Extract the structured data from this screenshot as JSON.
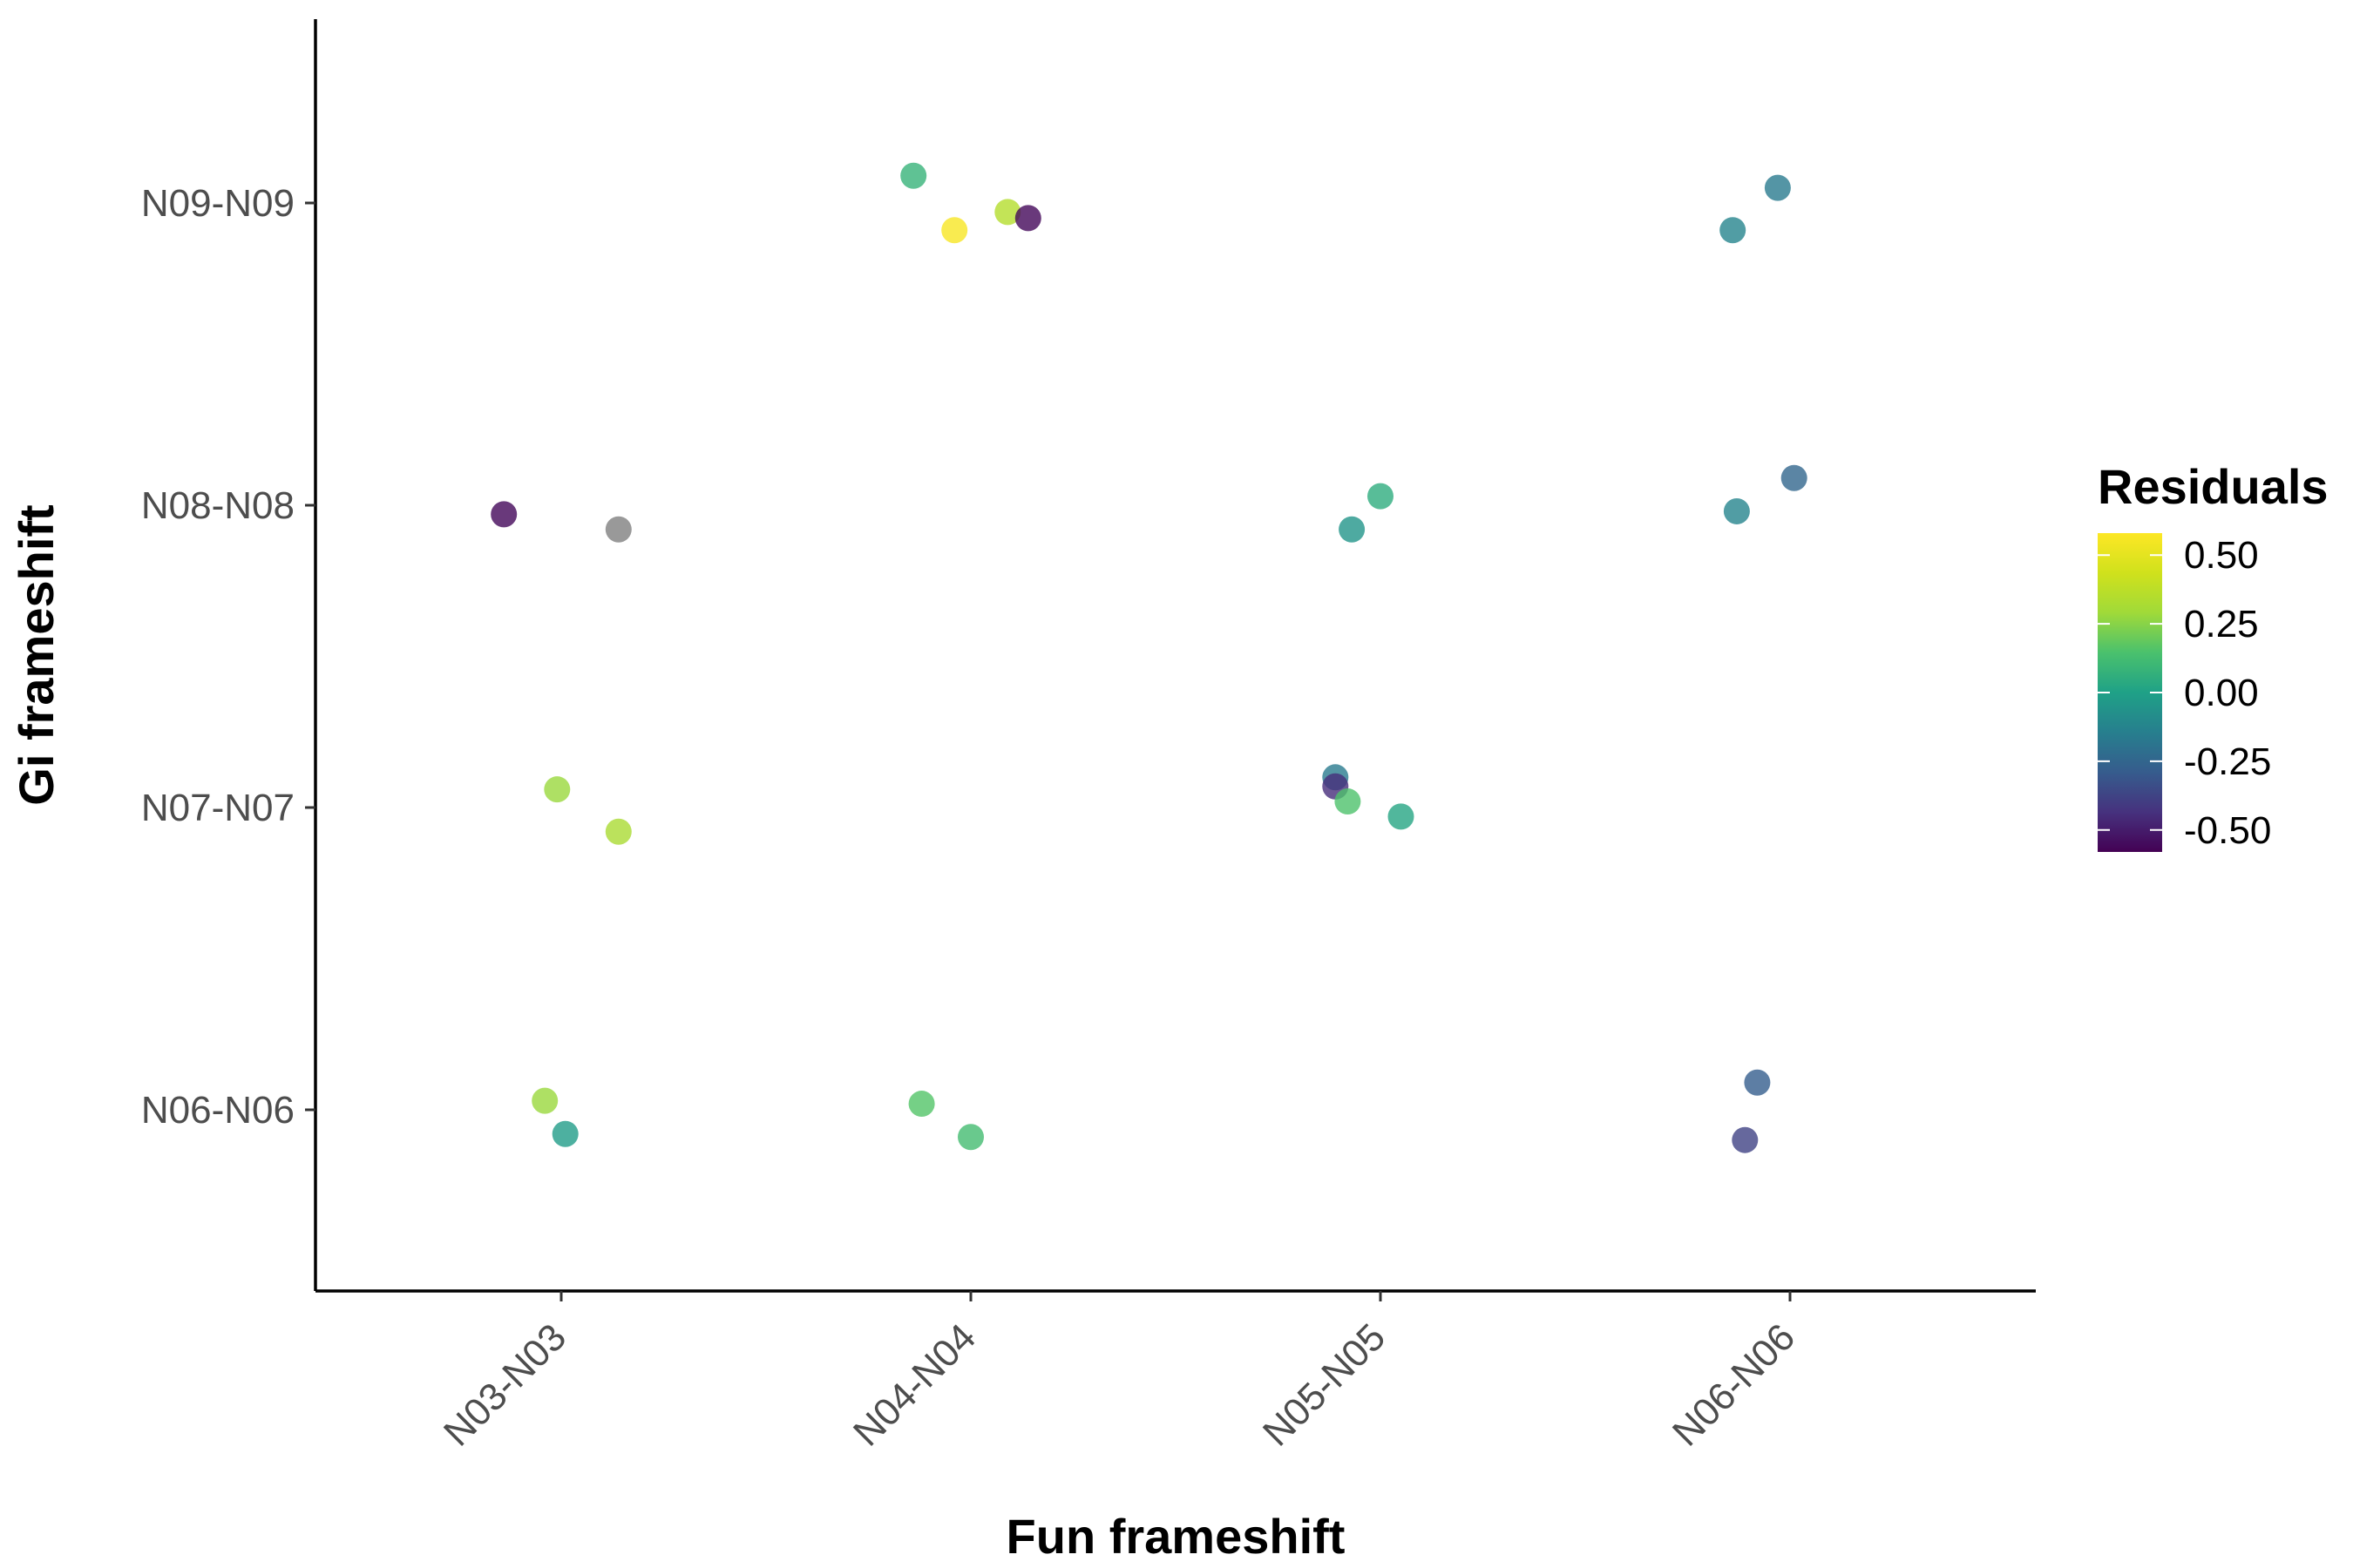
{
  "chart_data": {
    "type": "scatter",
    "xlabel": "Fun frameshift",
    "ylabel": "Gi frameshift",
    "x_categories": [
      "N03-N03",
      "N04-N04",
      "N05-N05",
      "N06-N06"
    ],
    "y_categories": [
      "N06-N06",
      "N07-N07",
      "N08-N08",
      "N09-N09"
    ],
    "color_scale": {
      "name": "Residuals",
      "palette": "viridis",
      "domain": [
        -0.58,
        0.58
      ],
      "ticks": [
        "0.50",
        "0.25",
        "0.00",
        "-0.25",
        "-0.50"
      ],
      "tick_values": [
        0.5,
        0.25,
        0.0,
        -0.25,
        -0.5
      ],
      "na_color": "#808080"
    },
    "points": [
      {
        "x": "N04-N04",
        "y": "N09-N09",
        "jx": -0.14,
        "jy": 0.09,
        "residual": 0.08
      },
      {
        "x": "N04-N04",
        "y": "N09-N09",
        "jx": -0.04,
        "jy": -0.09,
        "residual": 0.56
      },
      {
        "x": "N04-N04",
        "y": "N09-N09",
        "jx": 0.09,
        "jy": -0.03,
        "residual": 0.35
      },
      {
        "x": "N04-N04",
        "y": "N09-N09",
        "jx": 0.14,
        "jy": -0.05,
        "residual": -0.56
      },
      {
        "x": "N06-N06",
        "y": "N09-N09",
        "jx": -0.14,
        "jy": -0.09,
        "residual": -0.12
      },
      {
        "x": "N06-N06",
        "y": "N09-N09",
        "jx": -0.03,
        "jy": 0.05,
        "residual": -0.16
      },
      {
        "x": "N03-N03",
        "y": "N08-N08",
        "jx": -0.14,
        "jy": -0.03,
        "residual": -0.56
      },
      {
        "x": "N03-N03",
        "y": "N08-N08",
        "jx": 0.14,
        "jy": -0.08,
        "residual": null
      },
      {
        "x": "N05-N05",
        "y": "N08-N08",
        "jx": -0.07,
        "jy": -0.08,
        "residual": -0.05
      },
      {
        "x": "N05-N05",
        "y": "N08-N08",
        "jx": 0.0,
        "jy": 0.03,
        "residual": 0.05
      },
      {
        "x": "N06-N06",
        "y": "N08-N08",
        "jx": -0.13,
        "jy": -0.02,
        "residual": -0.12
      },
      {
        "x": "N06-N06",
        "y": "N08-N08",
        "jx": 0.01,
        "jy": 0.09,
        "residual": -0.25
      },
      {
        "x": "N03-N03",
        "y": "N07-N07",
        "jx": -0.01,
        "jy": 0.06,
        "residual": 0.28
      },
      {
        "x": "N03-N03",
        "y": "N07-N07",
        "jx": 0.14,
        "jy": -0.08,
        "residual": 0.32
      },
      {
        "x": "N05-N05",
        "y": "N07-N07",
        "jx": -0.11,
        "jy": 0.1,
        "residual": -0.16
      },
      {
        "x": "N05-N05",
        "y": "N07-N07",
        "jx": -0.11,
        "jy": 0.07,
        "residual": -0.45
      },
      {
        "x": "N05-N05",
        "y": "N07-N07",
        "jx": -0.08,
        "jy": 0.02,
        "residual": 0.15
      },
      {
        "x": "N05-N05",
        "y": "N07-N07",
        "jx": 0.05,
        "jy": -0.03,
        "residual": 0.02
      },
      {
        "x": "N03-N03",
        "y": "N06-N06",
        "jx": -0.04,
        "jy": 0.03,
        "residual": 0.28
      },
      {
        "x": "N03-N03",
        "y": "N06-N06",
        "jx": 0.01,
        "jy": -0.08,
        "residual": -0.02
      },
      {
        "x": "N04-N04",
        "y": "N06-N06",
        "jx": -0.12,
        "jy": 0.02,
        "residual": 0.16
      },
      {
        "x": "N04-N04",
        "y": "N06-N06",
        "jx": 0.0,
        "jy": -0.09,
        "residual": 0.12
      },
      {
        "x": "N06-N06",
        "y": "N06-N06",
        "jx": -0.08,
        "jy": 0.09,
        "residual": -0.28
      },
      {
        "x": "N06-N06",
        "y": "N06-N06",
        "jx": -0.11,
        "jy": -0.1,
        "residual": -0.38
      }
    ],
    "grid": false,
    "legend_position": "right"
  }
}
